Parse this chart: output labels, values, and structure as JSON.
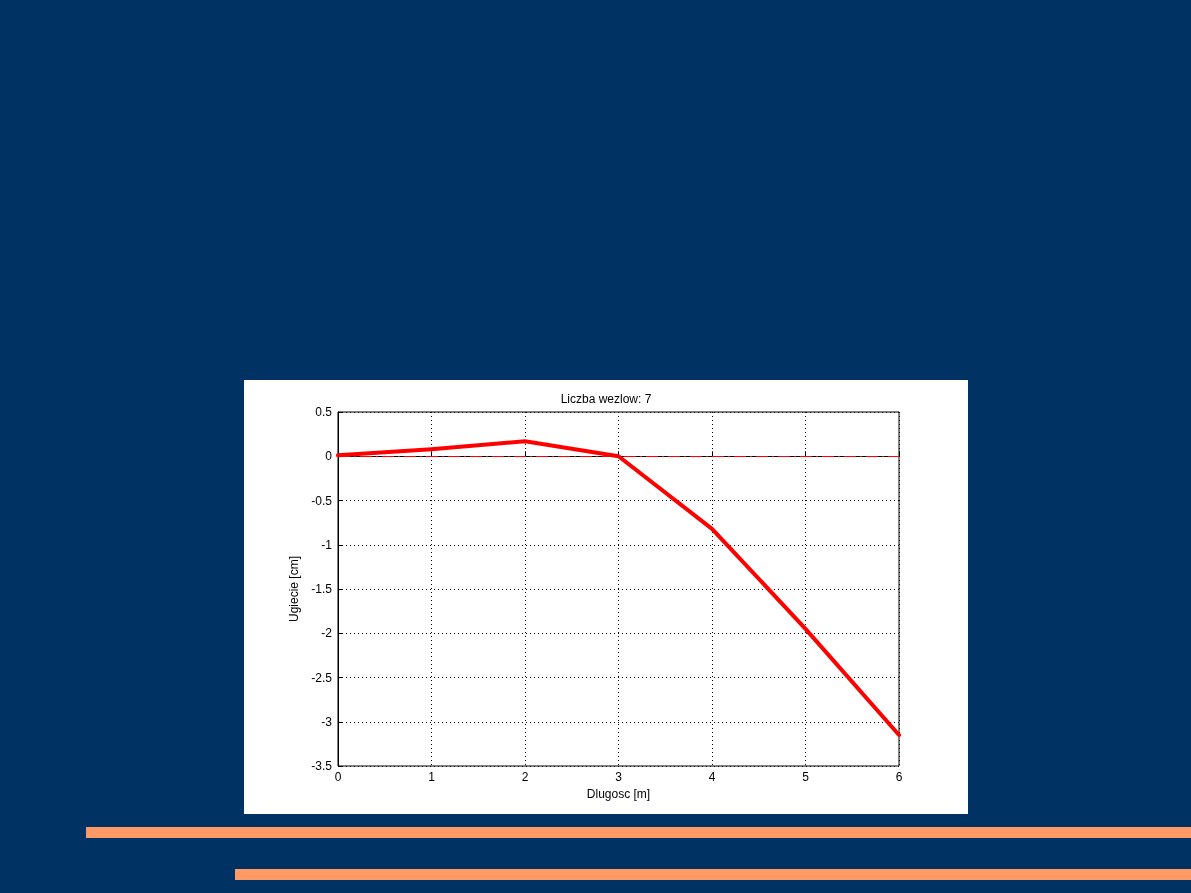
{
  "chart_data": {
    "type": "line",
    "title": "Liczba wezlow: 7",
    "xlabel": "Dlugosc [m]",
    "ylabel": "Ugiecie [cm]",
    "x": [
      0,
      1,
      2,
      3,
      4,
      5,
      6
    ],
    "series": [
      {
        "color": "#ff0000",
        "values": [
          0.01,
          0.08,
          0.17,
          0.0,
          -0.82,
          -1.95,
          -3.15
        ]
      }
    ],
    "xlim": [
      0,
      6
    ],
    "xticks": [
      0,
      1,
      2,
      3,
      4,
      5,
      6
    ],
    "ylim": [
      -3.5,
      0.5
    ],
    "yticks": [
      -3.5,
      -3,
      -2.5,
      -2,
      -1.5,
      -1,
      -0.5,
      0,
      0.5
    ],
    "ref_lines": [
      {
        "axis": "y",
        "value": 0,
        "color": "#ff0000",
        "line_style": "dashed"
      }
    ],
    "grid": true,
    "line_style": "solid",
    "marker": "none"
  }
}
